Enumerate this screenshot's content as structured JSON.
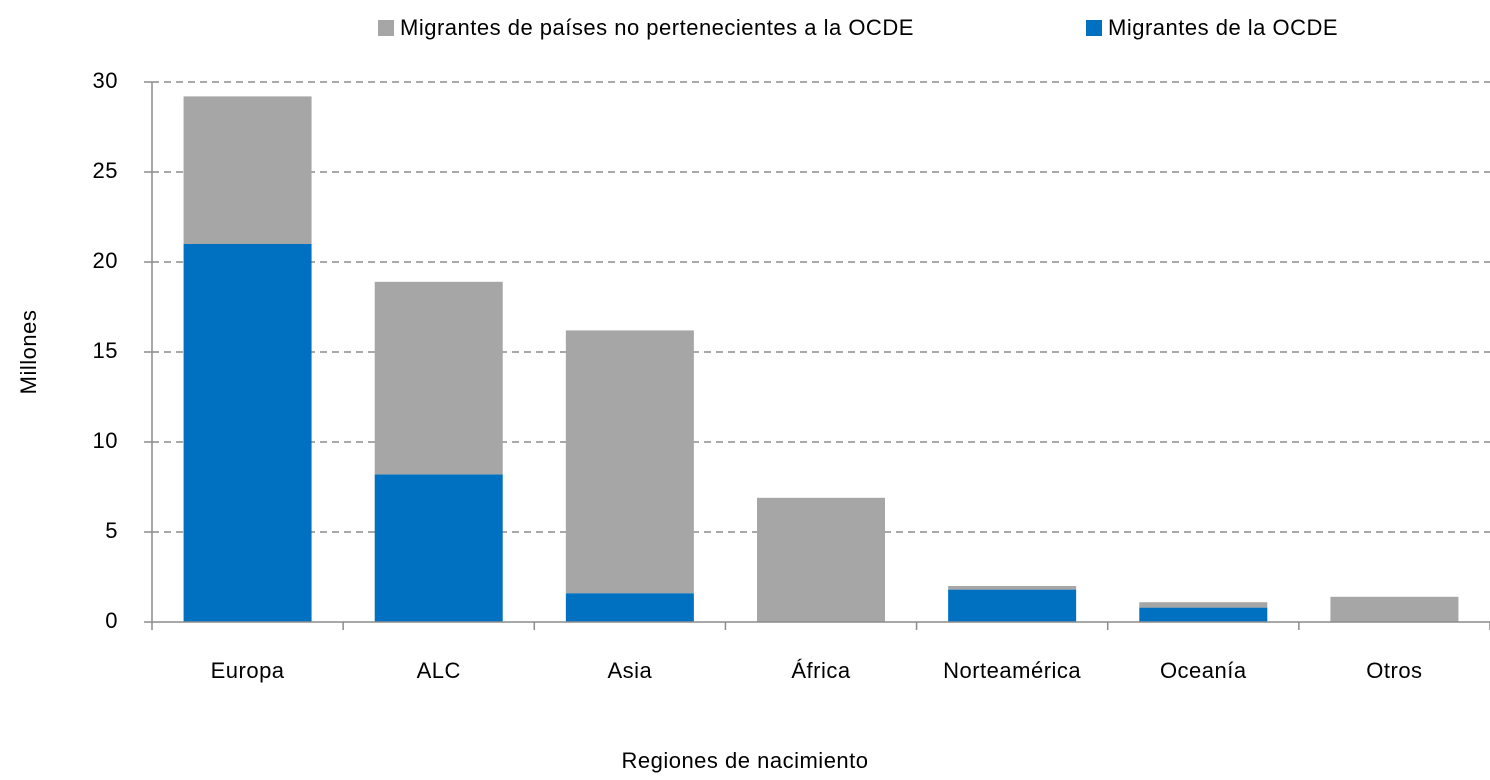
{
  "chart_data": {
    "type": "stacked-bar",
    "categories": [
      "Europa",
      "ALC",
      "Asia",
      "África",
      "Norteamérica",
      "Oceanía",
      "Otros"
    ],
    "series": [
      {
        "name": "Migrantes de la OCDE",
        "color": "#0070c0",
        "values": [
          21.0,
          8.2,
          1.6,
          0,
          1.8,
          0.8,
          0
        ]
      },
      {
        "name": "Migrantes de países no pertenecientes a la OCDE",
        "color": "#a6a6a6",
        "values": [
          8.2,
          10.7,
          14.6,
          6.9,
          0.2,
          0.3,
          1.4
        ]
      }
    ],
    "ylim": [
      0,
      30
    ],
    "yticks": [
      0,
      5,
      10,
      15,
      20,
      25,
      30
    ],
    "grid": true,
    "ylabel": "Millones",
    "xlabel": "Regiones de nacimiento"
  }
}
